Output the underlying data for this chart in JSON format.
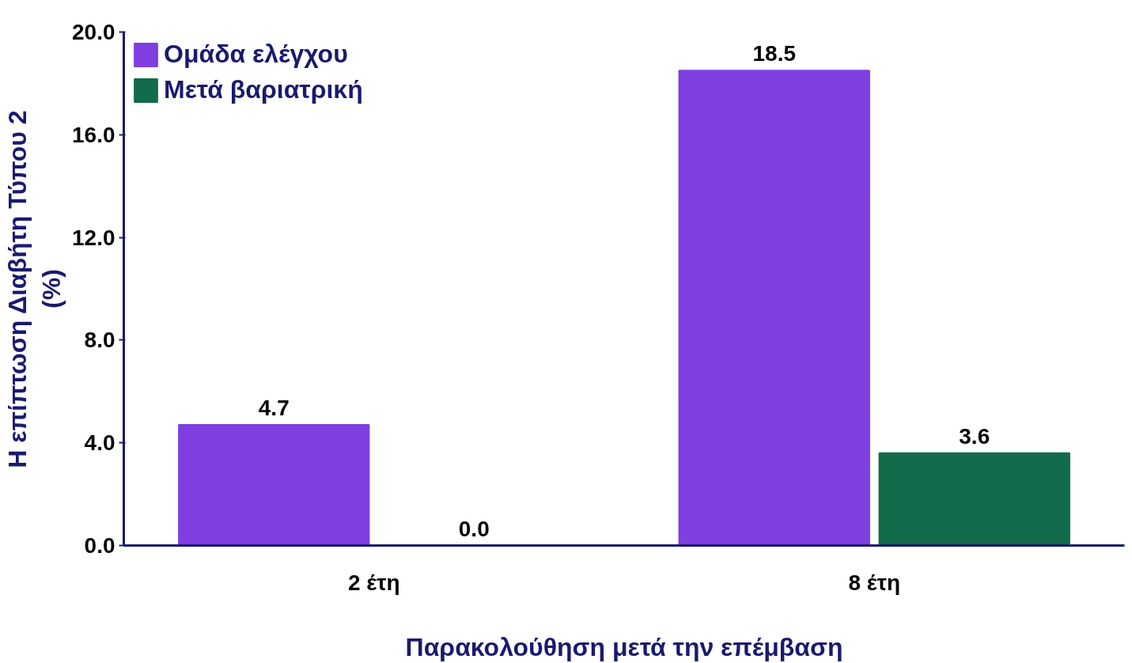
{
  "chart_data": {
    "type": "bar",
    "categories": [
      "2 έτη",
      "8 έτη"
    ],
    "series": [
      {
        "name": "Ομάδα ελέγχου",
        "color": "#7f3fe0",
        "values": [
          4.7,
          18.5
        ],
        "value_labels": [
          "4.7",
          "18.5"
        ]
      },
      {
        "name": "Μετά βαριατρική",
        "color": "#126b4a",
        "values": [
          0.0,
          3.6
        ],
        "value_labels": [
          "0.0",
          "3.6"
        ]
      }
    ],
    "xlabel": "Παρακολούθηση μετά την επέμβαση",
    "ylabel": "Η επίπτωση Διαβήτη Τύπου 2\n(%)",
    "ylim": [
      0,
      20
    ],
    "yticks": [
      {
        "value": 0,
        "label": "0.0"
      },
      {
        "value": 4,
        "label": "4.0"
      },
      {
        "value": 8,
        "label": "8.0"
      },
      {
        "value": 12,
        "label": "12.0"
      },
      {
        "value": 16,
        "label": "16.0"
      },
      {
        "value": 20,
        "label": "20.0"
      }
    ],
    "grid": false,
    "legend": "top left"
  }
}
